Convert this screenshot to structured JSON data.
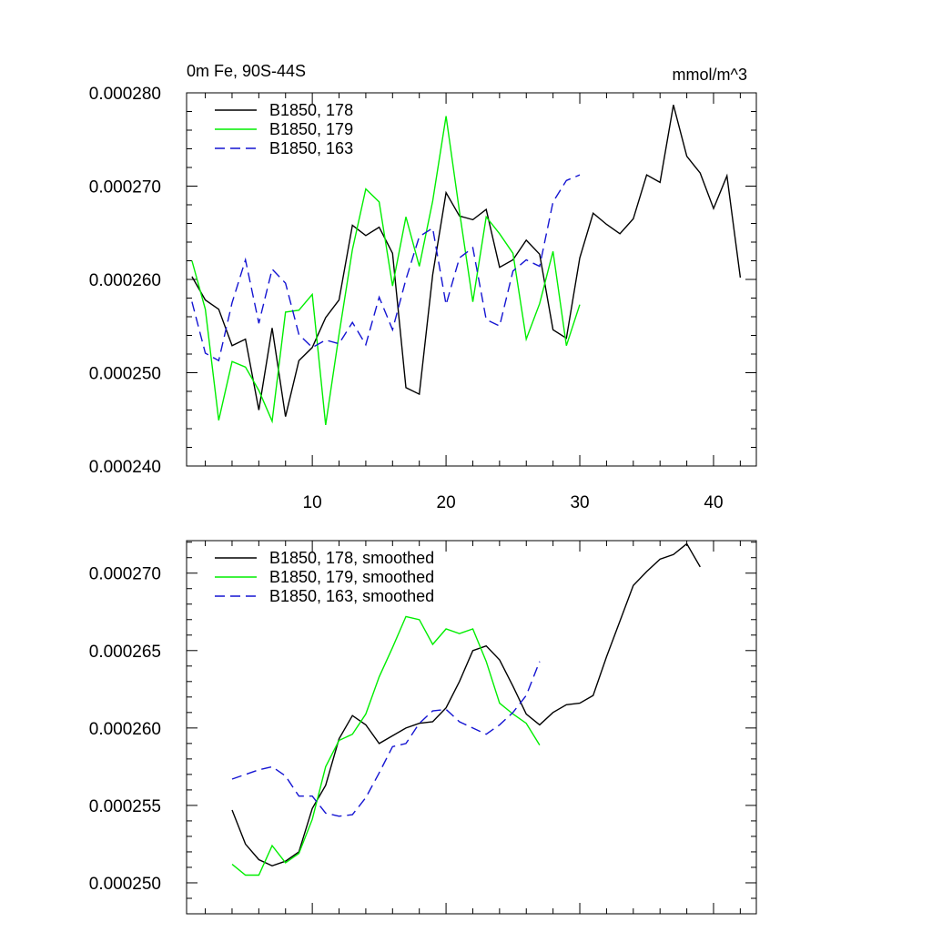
{
  "chart_data": [
    {
      "type": "line",
      "title": "0m Fe, 90S-44S",
      "units": "mmol/m^3",
      "xlabel": "",
      "ylabel": "",
      "xlim": [
        0.6,
        43.2
      ],
      "ylim": [
        0.00024,
        0.00028
      ],
      "xticks": [
        10,
        20,
        30,
        40
      ],
      "xtick_labels": [
        "10",
        "20",
        "30",
        "40"
      ],
      "yticks": [
        0.00024,
        0.00025,
        0.00026,
        0.00027,
        0.00028
      ],
      "ytick_labels": [
        "0.000240",
        "0.000250",
        "0.000260",
        "0.000270",
        "0.000280"
      ],
      "legend_position": "top-left",
      "series": [
        {
          "name": "B1850, 178",
          "color": "#000000",
          "dash": "solid",
          "x": [
            1,
            2,
            3,
            4,
            5,
            6,
            7,
            8,
            9,
            10,
            11,
            12,
            13,
            14,
            15,
            16,
            17,
            18,
            19,
            20,
            21,
            22,
            23,
            24,
            25,
            26,
            27,
            28,
            29,
            30,
            31,
            32,
            33,
            34,
            35,
            36,
            37,
            38,
            39,
            40,
            41,
            42
          ],
          "values": [
            0.0002603,
            0.0002578,
            0.0002568,
            0.0002529,
            0.0002536,
            0.000246,
            0.0002548,
            0.0002453,
            0.0002513,
            0.0002527,
            0.0002559,
            0.0002578,
            0.0002658,
            0.0002647,
            0.0002656,
            0.0002628,
            0.0002484,
            0.0002477,
            0.0002605,
            0.0002693,
            0.0002668,
            0.0002664,
            0.0002675,
            0.0002613,
            0.0002621,
            0.0002642,
            0.0002627,
            0.0002546,
            0.0002537,
            0.0002623,
            0.0002671,
            0.0002659,
            0.0002649,
            0.0002665,
            0.0002712,
            0.0002704,
            0.0002787,
            0.0002732,
            0.0002714,
            0.0002676,
            0.0002711,
            0.0002602
          ]
        },
        {
          "name": "B1850, 179",
          "color": "#00ee00",
          "dash": "solid",
          "x": [
            1,
            2,
            3,
            4,
            5,
            6,
            7,
            8,
            9,
            10,
            11,
            12,
            13,
            14,
            15,
            16,
            17,
            18,
            19,
            20,
            21,
            22,
            23,
            24,
            25,
            26,
            27,
            28,
            29,
            30
          ],
          "values": [
            0.000262,
            0.0002568,
            0.0002449,
            0.0002512,
            0.0002506,
            0.0002481,
            0.0002448,
            0.0002565,
            0.0002567,
            0.0002584,
            0.0002444,
            0.0002541,
            0.0002632,
            0.0002697,
            0.0002683,
            0.0002593,
            0.0002667,
            0.0002614,
            0.0002684,
            0.0002775,
            0.0002673,
            0.0002576,
            0.0002667,
            0.0002649,
            0.0002628,
            0.0002536,
            0.0002574,
            0.000263,
            0.0002529,
            0.0002573
          ]
        },
        {
          "name": "B1850, 163",
          "color": "#1414d2",
          "dash": "dashed",
          "x": [
            1,
            2,
            3,
            4,
            5,
            6,
            7,
            8,
            9,
            10,
            11,
            12,
            13,
            14,
            15,
            16,
            17,
            18,
            19,
            20,
            21,
            22,
            23,
            24,
            25,
            26,
            27,
            28,
            29,
            30
          ],
          "values": [
            0.0002576,
            0.0002521,
            0.0002513,
            0.0002575,
            0.0002621,
            0.0002553,
            0.0002611,
            0.0002596,
            0.0002541,
            0.0002527,
            0.0002535,
            0.0002531,
            0.0002554,
            0.000253,
            0.0002581,
            0.0002546,
            0.00026,
            0.0002646,
            0.0002655,
            0.0002573,
            0.0002623,
            0.0002634,
            0.0002557,
            0.000255,
            0.0002609,
            0.0002621,
            0.0002614,
            0.0002683,
            0.0002706,
            0.0002712
          ]
        }
      ]
    },
    {
      "type": "line",
      "title": "",
      "xlabel": "",
      "ylabel": "",
      "xlim": [
        0.6,
        43.2
      ],
      "ylim": [
        0.000248,
        0.0002721
      ],
      "xticks": [
        10,
        20,
        30,
        40
      ],
      "xtick_labels": [],
      "yticks": [
        0.00025,
        0.000255,
        0.00026,
        0.000265,
        0.00027
      ],
      "ytick_labels": [
        "0.000250",
        "0.000255",
        "0.000260",
        "0.000265",
        "0.000270"
      ],
      "legend_position": "top-left",
      "series": [
        {
          "name": "B1850, 178, smoothed",
          "color": "#000000",
          "dash": "solid",
          "x": [
            4,
            5,
            6,
            7,
            8,
            9,
            10,
            11,
            12,
            13,
            14,
            15,
            16,
            17,
            18,
            19,
            20,
            21,
            22,
            23,
            24,
            25,
            26,
            27,
            28,
            29,
            30,
            31,
            32,
            33,
            34,
            35,
            36,
            37,
            38,
            39
          ],
          "values": [
            0.0002547,
            0.0002525,
            0.0002515,
            0.0002511,
            0.0002514,
            0.000252,
            0.0002548,
            0.0002563,
            0.0002593,
            0.0002608,
            0.0002602,
            0.000259,
            0.0002595,
            0.00026,
            0.0002603,
            0.0002604,
            0.0002613,
            0.000263,
            0.000265,
            0.0002653,
            0.0002644,
            0.0002627,
            0.0002609,
            0.0002602,
            0.000261,
            0.0002615,
            0.0002616,
            0.0002621,
            0.0002646,
            0.0002669,
            0.0002692,
            0.0002701,
            0.0002709,
            0.0002712,
            0.0002719,
            0.0002704
          ]
        },
        {
          "name": "B1850, 179, smoothed",
          "color": "#00ee00",
          "dash": "solid",
          "x": [
            4,
            5,
            6,
            7,
            8,
            9,
            10,
            11,
            12,
            13,
            14,
            15,
            16,
            17,
            18,
            19,
            20,
            21,
            22,
            23,
            24,
            25,
            26,
            27
          ],
          "values": [
            0.0002512,
            0.0002505,
            0.0002505,
            0.0002524,
            0.0002513,
            0.0002519,
            0.0002541,
            0.0002575,
            0.0002592,
            0.0002596,
            0.0002609,
            0.0002633,
            0.0002652,
            0.0002672,
            0.000267,
            0.0002654,
            0.0002664,
            0.0002661,
            0.0002664,
            0.0002643,
            0.0002616,
            0.0002609,
            0.0002603,
            0.0002589
          ]
        },
        {
          "name": "B1850, 163, smoothed",
          "color": "#1414d2",
          "dash": "dashed",
          "x": [
            4,
            5,
            6,
            7,
            8,
            9,
            10,
            11,
            12,
            13,
            14,
            15,
            16,
            17,
            18,
            19,
            20,
            21,
            22,
            23,
            24,
            25,
            26,
            27
          ],
          "values": [
            0.0002567,
            0.000257,
            0.0002573,
            0.0002575,
            0.0002569,
            0.0002556,
            0.0002556,
            0.0002545,
            0.0002543,
            0.0002544,
            0.0002555,
            0.0002571,
            0.0002588,
            0.000259,
            0.0002603,
            0.0002611,
            0.0002612,
            0.0002604,
            0.00026,
            0.0002596,
            0.0002602,
            0.000261,
            0.0002621,
            0.0002643
          ]
        }
      ]
    }
  ]
}
